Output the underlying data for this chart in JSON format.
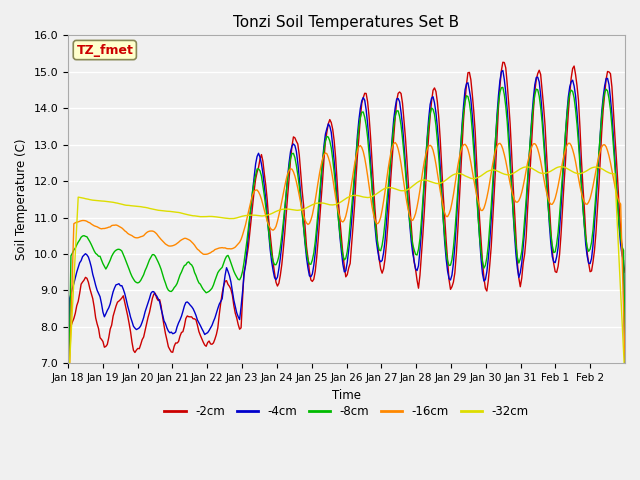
{
  "title": "Tonzi Soil Temperatures Set B",
  "xlabel": "Time",
  "ylabel": "Soil Temperature (C)",
  "ylim": [
    7.0,
    16.0
  ],
  "yticks": [
    7.0,
    8.0,
    9.0,
    10.0,
    11.0,
    12.0,
    13.0,
    14.0,
    15.0,
    16.0
  ],
  "bg_color": "#f0f0f0",
  "legend_entries": [
    "-2cm",
    "-4cm",
    "-8cm",
    "-16cm",
    "-32cm"
  ],
  "line_colors": [
    "#cc0000",
    "#0000cc",
    "#00bb00",
    "#ff8800",
    "#dddd00"
  ],
  "annotation_text": "TZ_fmet",
  "annotation_color": "#cc0000",
  "annotation_bg": "#ffffcc",
  "annotation_edge": "#888855",
  "xtick_labels": [
    "Jan 18",
    "Jan 19",
    "Jan 20",
    "Jan 21",
    "Jan 22",
    "Jan 23",
    "Jan 24",
    "Jan 25",
    "Jan 26",
    "Jan 27",
    "Jan 28",
    "Jan 29",
    "Jan 30",
    "Jan 31",
    "Feb 1",
    "Feb 2"
  ]
}
